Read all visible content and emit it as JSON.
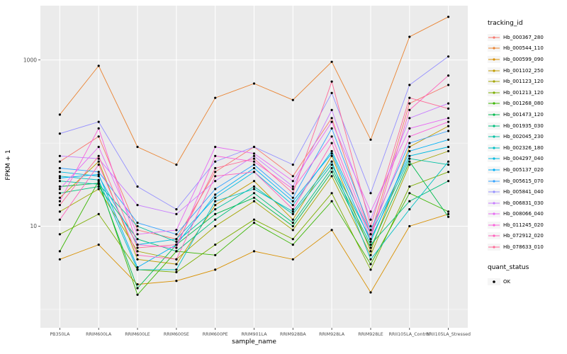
{
  "figure": {
    "y_axis_title": "FPKM + 1",
    "x_axis_title": "sample_name"
  },
  "legend": {
    "tracking_title": "tracking_id",
    "quant_title": "quant_status",
    "quant_items": [
      {
        "label": "OK",
        "color": "#000000"
      }
    ]
  },
  "chart_data": {
    "type": "line",
    "title": "",
    "xlabel": "sample_name",
    "ylabel": "FPKM + 1",
    "y_scale": "log10",
    "ylim": [
      0.6,
      4500
    ],
    "y_ticks": [
      10,
      1000
    ],
    "y_minor_ticks": [
      1,
      100
    ],
    "panel_bg": "#EBEBEB",
    "grid_color": "#FFFFFF",
    "point_color": "#000000",
    "legend_position": "right",
    "x_categories": [
      "PB350LA",
      "RRIM600LA",
      "RRIM600LE",
      "RRIM600SE",
      "RRIM600PE",
      "RRIM901LA",
      "RRIM928BA",
      "RRIM928LA",
      "RRIM928LE",
      "RRII105LA_Control",
      "RRII105LA_Stressed"
    ],
    "series": [
      {
        "name": "Hb_000367_280",
        "color": "#F8766D",
        "values": [
          60,
          120,
          9,
          7,
          45,
          90,
          40,
          200,
          8,
          300,
          500
        ]
      },
      {
        "name": "Hb_000544_110",
        "color": "#EA8331",
        "values": [
          220,
          850,
          90,
          55,
          350,
          520,
          330,
          950,
          110,
          1900,
          3300
        ]
      },
      {
        "name": "Hb_000599_090",
        "color": "#D89000",
        "values": [
          4,
          6,
          2,
          2.2,
          3,
          5,
          4,
          9,
          1.6,
          10,
          14
        ]
      },
      {
        "name": "Hb_001102_250",
        "color": "#C09B00",
        "values": [
          22,
          60,
          4,
          3.5,
          18,
          35,
          12,
          70,
          5,
          90,
          160
        ]
      },
      {
        "name": "Hb_001123_120",
        "color": "#A3A500",
        "values": [
          15,
          28,
          5,
          4,
          10,
          20,
          9,
          40,
          4.5,
          55,
          80
        ]
      },
      {
        "name": "Hb_001213_120",
        "color": "#7CAE00",
        "values": [
          8,
          14,
          3,
          2.8,
          6,
          12,
          7,
          25,
          3,
          30,
          45
        ]
      },
      {
        "name": "Hb_001268_080",
        "color": "#39B600",
        "values": [
          5,
          35,
          1.5,
          5,
          4.5,
          11,
          6,
          20,
          3.5,
          25,
          15
        ]
      },
      {
        "name": "Hb_001473_120",
        "color": "#00BB4E",
        "values": [
          30,
          33,
          1.8,
          6,
          14,
          22,
          10,
          45,
          5.5,
          60,
          13
        ]
      },
      {
        "name": "Hb_001935_030",
        "color": "#00BF7D",
        "values": [
          25,
          30,
          7,
          5,
          12,
          25,
          11,
          50,
          6,
          20,
          35
        ]
      },
      {
        "name": "Hb_002045_230",
        "color": "#00C1A3",
        "values": [
          35,
          32,
          10,
          6.5,
          16,
          30,
          14,
          55,
          7,
          65,
          55
        ]
      },
      {
        "name": "Hb_002326_180",
        "color": "#00BFC4",
        "values": [
          40,
          36,
          3,
          3,
          20,
          28,
          15,
          60,
          4,
          16,
          60
        ]
      },
      {
        "name": "Hb_004297_040",
        "color": "#00BAE0",
        "values": [
          45,
          40,
          6,
          7,
          22,
          45,
          18,
          80,
          8,
          70,
          90
        ]
      },
      {
        "name": "Hb_005137_020",
        "color": "#00B0F6",
        "values": [
          38,
          42,
          3.2,
          6,
          24,
          50,
          20,
          75,
          6.5,
          80,
          110
        ]
      },
      {
        "name": "Hb_005615_070",
        "color": "#35A2FF",
        "values": [
          50,
          45,
          11,
          8,
          28,
          55,
          22,
          150,
          9,
          100,
          140
        ]
      },
      {
        "name": "Hb_005841_040",
        "color": "#9590FF",
        "values": [
          130,
          180,
          30,
          16,
          60,
          90,
          55,
          400,
          25,
          500,
          1100
        ]
      },
      {
        "name": "Hb_006831_030",
        "color": "#C77CFF",
        "values": [
          70,
          65,
          18,
          14,
          35,
          70,
          30,
          250,
          12,
          200,
          300
        ]
      },
      {
        "name": "Hb_008066_040",
        "color": "#E76BF3",
        "values": [
          28,
          90,
          8,
          9,
          90,
          75,
          35,
          180,
          15,
          150,
          200
        ]
      },
      {
        "name": "Hb_011245_020",
        "color": "#FA62DB",
        "values": [
          20,
          150,
          6,
          5.5,
          70,
          60,
          28,
          120,
          8,
          120,
          180
        ]
      },
      {
        "name": "Hb_072912_020",
        "color": "#FF62BC",
        "values": [
          12,
          55,
          4.5,
          4,
          40,
          45,
          16,
          100,
          7,
          250,
          650
        ]
      },
      {
        "name": "Hb_078633_010",
        "color": "#FF6A98",
        "values": [
          18,
          70,
          5.5,
          6,
          50,
          65,
          25,
          550,
          10,
          350,
          260
        ]
      }
    ]
  }
}
